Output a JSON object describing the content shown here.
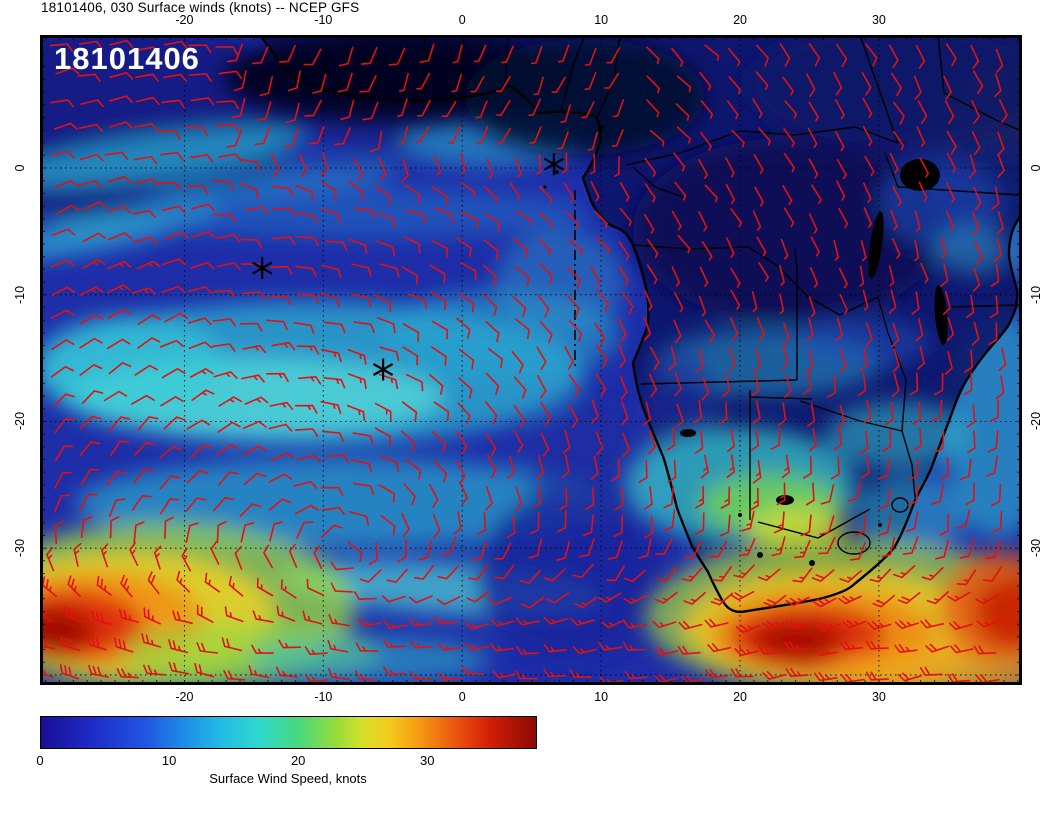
{
  "title": "18101406, 030 Surface winds (knots) -- NCEP GFS",
  "map": {
    "overlay_label": "18101406",
    "barb_color": "#e01212",
    "markers": [
      {
        "lon": 6.6,
        "lat": 0.3
      },
      {
        "lon": -14.4,
        "lat": -7.9
      },
      {
        "lon": -5.7,
        "lat": -15.9
      }
    ]
  },
  "axes": {
    "lon_ticks": [
      -20,
      -10,
      0,
      10,
      20,
      30
    ],
    "lat_ticks": [
      0,
      -10,
      -20,
      -30
    ],
    "lon_gridlines": [
      -20,
      -10,
      0,
      10,
      20,
      30
    ],
    "lat_gridlines": [
      0,
      -10,
      -20,
      -30,
      -40
    ],
    "lon_range": [
      -30.4,
      40.3
    ],
    "lat_range": [
      10.5,
      -40.8
    ]
  },
  "colorbar": {
    "label": "Surface Wind Speed, knots",
    "ticks": [
      0,
      10,
      20,
      30
    ],
    "range": [
      0,
      38.5
    ],
    "stops": [
      {
        "v": 0,
        "c": "#190f96"
      },
      {
        "v": 4,
        "c": "#1e2cc8"
      },
      {
        "v": 8,
        "c": "#2054e0"
      },
      {
        "v": 11,
        "c": "#1e8ae8"
      },
      {
        "v": 14,
        "c": "#22bce4"
      },
      {
        "v": 17,
        "c": "#30d8cc"
      },
      {
        "v": 20,
        "c": "#46d87e"
      },
      {
        "v": 23,
        "c": "#96dc3a"
      },
      {
        "v": 25,
        "c": "#d6e02a"
      },
      {
        "v": 27,
        "c": "#f2cc1e"
      },
      {
        "v": 29,
        "c": "#f6a414"
      },
      {
        "v": 31,
        "c": "#f07410"
      },
      {
        "v": 33,
        "c": "#e6440c"
      },
      {
        "v": 35,
        "c": "#d01e06"
      },
      {
        "v": 38.5,
        "c": "#8c0a04"
      }
    ]
  },
  "chart_data": {
    "type": "heatmap",
    "title": "18101406, 030 Surface winds (knots) -- NCEP GFS",
    "model": "NCEP GFS",
    "run_and_forecast_hour": "18101406 + 030",
    "variable": "Surface wind speed",
    "units": "knots",
    "overlay": "red wind barbs on regular grid over color-shaded wind speed field",
    "region": "Tropical and South Atlantic with southern Africa",
    "lon_range": [
      -30.4,
      40.3
    ],
    "lat_range": [
      -40.8,
      10.5
    ],
    "lon_gridlines": [
      -20,
      -10,
      0,
      10,
      20,
      30
    ],
    "lat_gridlines": [
      0,
      -10,
      -20,
      -30
    ],
    "colorbar": {
      "label": "Surface Wind Speed, knots",
      "ticks": [
        0,
        10,
        20,
        30
      ],
      "range": [
        0,
        38.5
      ]
    },
    "markers_lonlat": [
      [
        6.6,
        0.3
      ],
      [
        -14.4,
        -7.9
      ],
      [
        -5.7,
        -15.9
      ]
    ],
    "features": [
      {
        "region": "southwest corner of map (~27W, 36S)",
        "wind_knots": "30-38",
        "desc": "dark red / orange maximum in strong westerlies"
      },
      {
        "region": "south coast of South Africa and Agulhas region (~18-32E, 33-38S)",
        "wind_knots": "28-38",
        "desc": "large orange/red wind maximum extending offshore"
      },
      {
        "region": "central South Atlantic trade-wind band (~25W-5E, 8-20S)",
        "wind_knots": "12-20",
        "desc": "cyan band of southeasterly trades"
      },
      {
        "region": "Congo basin and equatorial interior",
        "wind_knots": "0-8",
        "desc": "very dark blue calm region"
      },
      {
        "region": "Kalahari / Botswana / Namibia interior",
        "wind_knots": "15-25",
        "desc": "cyan-green-yellow patches"
      },
      {
        "region": "Mozambique coast / channel edge",
        "wind_knots": "12-18",
        "desc": "cyan band along east coast"
      },
      {
        "region": "far bottom-right corner (~38E, 37S)",
        "wind_knots": "30-38",
        "desc": "red maximum at map edge"
      }
    ]
  }
}
